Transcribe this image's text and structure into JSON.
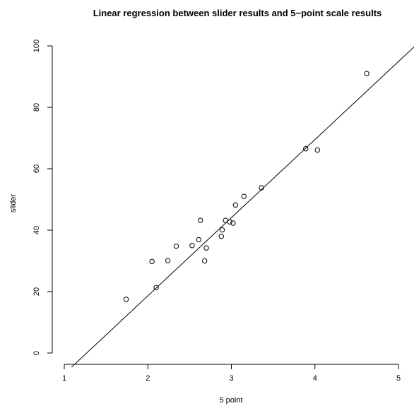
{
  "chart_data": {
    "type": "scatter",
    "title": "Linear regression between slider results and 5−point scale results",
    "xlabel": "5 point",
    "ylabel": "slider",
    "xlim": [
      1,
      5
    ],
    "ylim": [
      0,
      100
    ],
    "xticks": [
      1,
      2,
      3,
      4,
      5
    ],
    "xtick_labels": [
      "1",
      "2",
      "3",
      "4",
      "5"
    ],
    "yticks": [
      0,
      20,
      40,
      60,
      80,
      100
    ],
    "ytick_labels": [
      "0",
      "20",
      "40",
      "60",
      "80",
      "100"
    ],
    "grid": false,
    "series": [
      {
        "points": [
          {
            "x": 1.74,
            "y": 17.5
          },
          {
            "x": 2.05,
            "y": 29.8
          },
          {
            "x": 2.1,
            "y": 21.3
          },
          {
            "x": 2.24,
            "y": 30.1
          },
          {
            "x": 2.34,
            "y": 34.8
          },
          {
            "x": 2.53,
            "y": 35.0
          },
          {
            "x": 2.61,
            "y": 36.9
          },
          {
            "x": 2.63,
            "y": 43.2
          },
          {
            "x": 2.68,
            "y": 30.0
          },
          {
            "x": 2.7,
            "y": 34.2
          },
          {
            "x": 2.88,
            "y": 38.0
          },
          {
            "x": 2.89,
            "y": 40.1
          },
          {
            "x": 2.93,
            "y": 43.2
          },
          {
            "x": 2.98,
            "y": 42.7
          },
          {
            "x": 3.02,
            "y": 42.3
          },
          {
            "x": 3.05,
            "y": 48.2
          },
          {
            "x": 3.15,
            "y": 51.0
          },
          {
            "x": 3.36,
            "y": 53.8
          },
          {
            "x": 3.89,
            "y": 66.5
          },
          {
            "x": 4.03,
            "y": 66.1
          },
          {
            "x": 4.62,
            "y": 91.0
          }
        ]
      }
    ],
    "regression": {
      "x": [
        1.0,
        5.2
      ],
      "y": [
        -6.8,
        100.0
      ]
    }
  }
}
